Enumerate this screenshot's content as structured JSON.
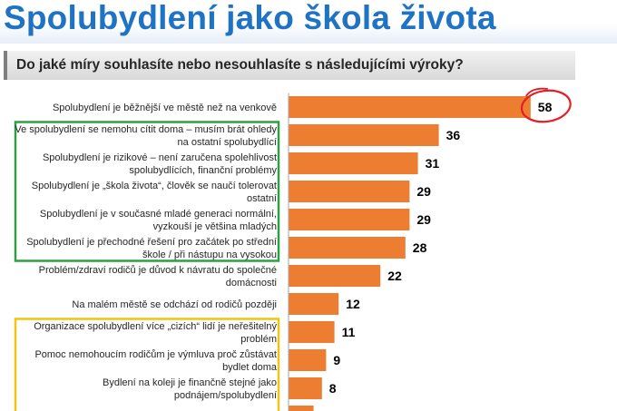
{
  "slide": {
    "title": "Spolubydlení jako škola života",
    "question": "Do jaké míry souhlasíte nebo nesouhlasíte s následujícími výroky?"
  },
  "chart_data": {
    "type": "bar",
    "orientation": "horizontal",
    "categories": [
      [
        "Spolubydlení je běžnější ve městě než na venkově"
      ],
      [
        "Ve spolubydlení se nemohu cítit doma – musím brát ohledy",
        "na ostatní spolubydlící"
      ],
      [
        "Spolubydlení je rizikové – není zaručena spolehlivost",
        "spolubydlících, finanční problémy"
      ],
      [
        "Spolubydlení je „škola života“, člověk se naučí tolerovat",
        "ostatní"
      ],
      [
        "Spolubydlení je v současné mladé generaci normální,",
        "vyzkouší je většina mladých"
      ],
      [
        "Spolubydlení je přechodné řešení pro začátek po střední",
        "škole / při nástupu na vysokou"
      ],
      [
        "Problém/zdraví rodičů je důvod k návratu do společné",
        "domácnosti"
      ],
      [
        "Na malém městě se odchází od rodičů později"
      ],
      [
        "Organizace spolubydlení více „cizích“ lidí je neřešitelný",
        "problém"
      ],
      [
        "Pomoc nemohoucím rodičům je výmluva proč zůstávat",
        "bydlet doma"
      ],
      [
        "Bydlení na koleji je finančně stejné jako",
        "podnájem/spolubydlení"
      ]
    ],
    "values": [
      58,
      36,
      31,
      29,
      29,
      28,
      22,
      12,
      11,
      9,
      8
    ],
    "xlim": [
      0,
      60
    ],
    "bar_color": "#ED7D31",
    "show_values": true,
    "grid": false,
    "highlights": [
      {
        "kind": "circle",
        "color": "#E31E24",
        "rows": [
          0
        ]
      },
      {
        "kind": "box",
        "color": "#2EA043",
        "rows": [
          1,
          5
        ]
      },
      {
        "kind": "box",
        "color": "#F2C511",
        "rows": [
          8,
          11
        ]
      }
    ]
  }
}
